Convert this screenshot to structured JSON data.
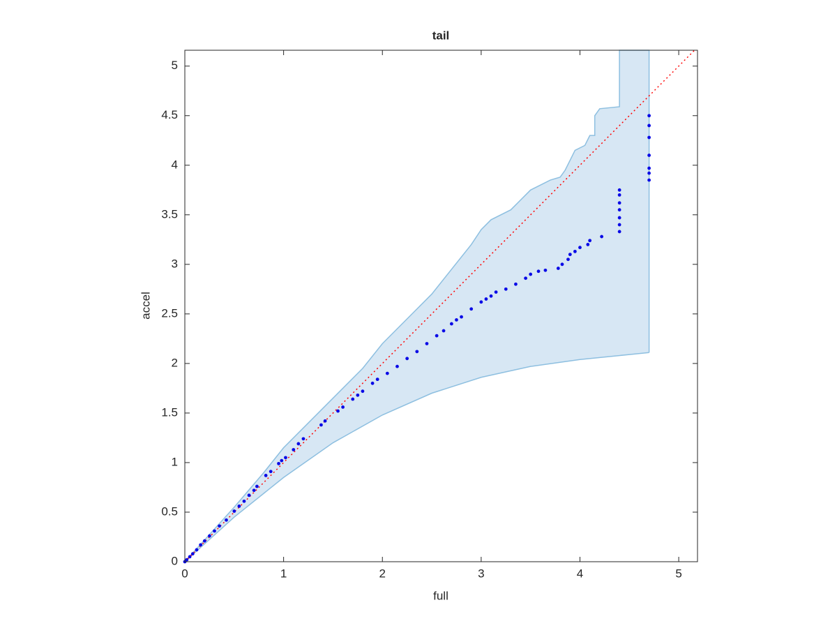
{
  "chart_data": {
    "type": "scatter",
    "title": "tail",
    "x_label": "full",
    "y_label": "accel",
    "xlim": [
      0,
      5.19
    ],
    "ylim": [
      0,
      5.16
    ],
    "xticks": [
      0,
      1,
      2,
      3,
      4,
      5
    ],
    "yticks": [
      0,
      0.5,
      1,
      1.5,
      2,
      2.5,
      3,
      3.5,
      4,
      4.5,
      5
    ],
    "grid": false,
    "band": {
      "fill": "#d7e7f4",
      "edge": "#8dbfe0",
      "upper": {
        "x": [
          0,
          0.2,
          0.5,
          0.8,
          1.0,
          1.4,
          1.8,
          2.0,
          2.3,
          2.5,
          2.7,
          2.9,
          3.0,
          3.1,
          3.3,
          3.4,
          3.5,
          3.6,
          3.7,
          3.8,
          3.85,
          3.9,
          3.95,
          4.05,
          4.1,
          4.15,
          4.15,
          4.2,
          4.4,
          4.4,
          4.7,
          4.7
        ],
        "y": [
          0,
          0.22,
          0.55,
          0.9,
          1.15,
          1.55,
          1.95,
          2.2,
          2.5,
          2.7,
          2.95,
          3.2,
          3.35,
          3.45,
          3.55,
          3.65,
          3.75,
          3.8,
          3.85,
          3.88,
          3.95,
          4.05,
          4.15,
          4.2,
          4.3,
          4.3,
          4.5,
          4.57,
          4.59,
          5.16,
          5.16,
          2.11
        ]
      },
      "lower": {
        "x": [
          0,
          0.5,
          1.0,
          1.5,
          2.0,
          2.5,
          3.0,
          3.5,
          4.0,
          4.5,
          4.7
        ],
        "y": [
          0,
          0.45,
          0.85,
          1.2,
          1.48,
          1.7,
          1.86,
          1.97,
          2.04,
          2.09,
          2.11
        ]
      }
    },
    "reference_line": {
      "color": "#ff0000",
      "x": [
        0,
        5.16
      ],
      "y": [
        0,
        5.16
      ]
    },
    "points": {
      "color": "#0a0ae6",
      "x": [
        0,
        0.02,
        0.05,
        0.08,
        0.12,
        0.16,
        0.2,
        0.25,
        0.3,
        0.35,
        0.42,
        0.5,
        0.55,
        0.6,
        0.65,
        0.7,
        0.73,
        0.82,
        0.87,
        0.95,
        0.98,
        1.02,
        1.1,
        1.15,
        1.2,
        1.38,
        1.42,
        1.55,
        1.6,
        1.7,
        1.75,
        1.8,
        1.9,
        1.95,
        2.05,
        2.15,
        2.25,
        2.35,
        2.45,
        2.55,
        2.62,
        2.7,
        2.75,
        2.8,
        2.9,
        3.0,
        3.05,
        3.1,
        3.15,
        3.25,
        3.35,
        3.45,
        3.5,
        3.58,
        3.65,
        3.78,
        3.82,
        3.88,
        3.9,
        3.95,
        4.0,
        4.08,
        4.1,
        4.22,
        4.4,
        4.4,
        4.4,
        4.4,
        4.4,
        4.4,
        4.4,
        4.7,
        4.7,
        4.7,
        4.7,
        4.7,
        4.7,
        4.7
      ],
      "y": [
        0,
        0.02,
        0.05,
        0.08,
        0.12,
        0.17,
        0.21,
        0.26,
        0.31,
        0.36,
        0.42,
        0.51,
        0.56,
        0.61,
        0.67,
        0.72,
        0.76,
        0.87,
        0.91,
        0.99,
        1.02,
        1.05,
        1.13,
        1.19,
        1.24,
        1.38,
        1.42,
        1.52,
        1.56,
        1.64,
        1.68,
        1.72,
        1.8,
        1.84,
        1.9,
        1.97,
        2.05,
        2.12,
        2.2,
        2.28,
        2.33,
        2.4,
        2.44,
        2.47,
        2.55,
        2.62,
        2.65,
        2.68,
        2.72,
        2.75,
        2.8,
        2.86,
        2.9,
        2.93,
        2.94,
        2.96,
        3.0,
        3.05,
        3.1,
        3.13,
        3.17,
        3.2,
        3.24,
        3.28,
        3.33,
        3.4,
        3.47,
        3.55,
        3.62,
        3.7,
        3.75,
        3.85,
        3.92,
        3.97,
        4.1,
        4.28,
        4.4,
        4.5
      ]
    }
  }
}
